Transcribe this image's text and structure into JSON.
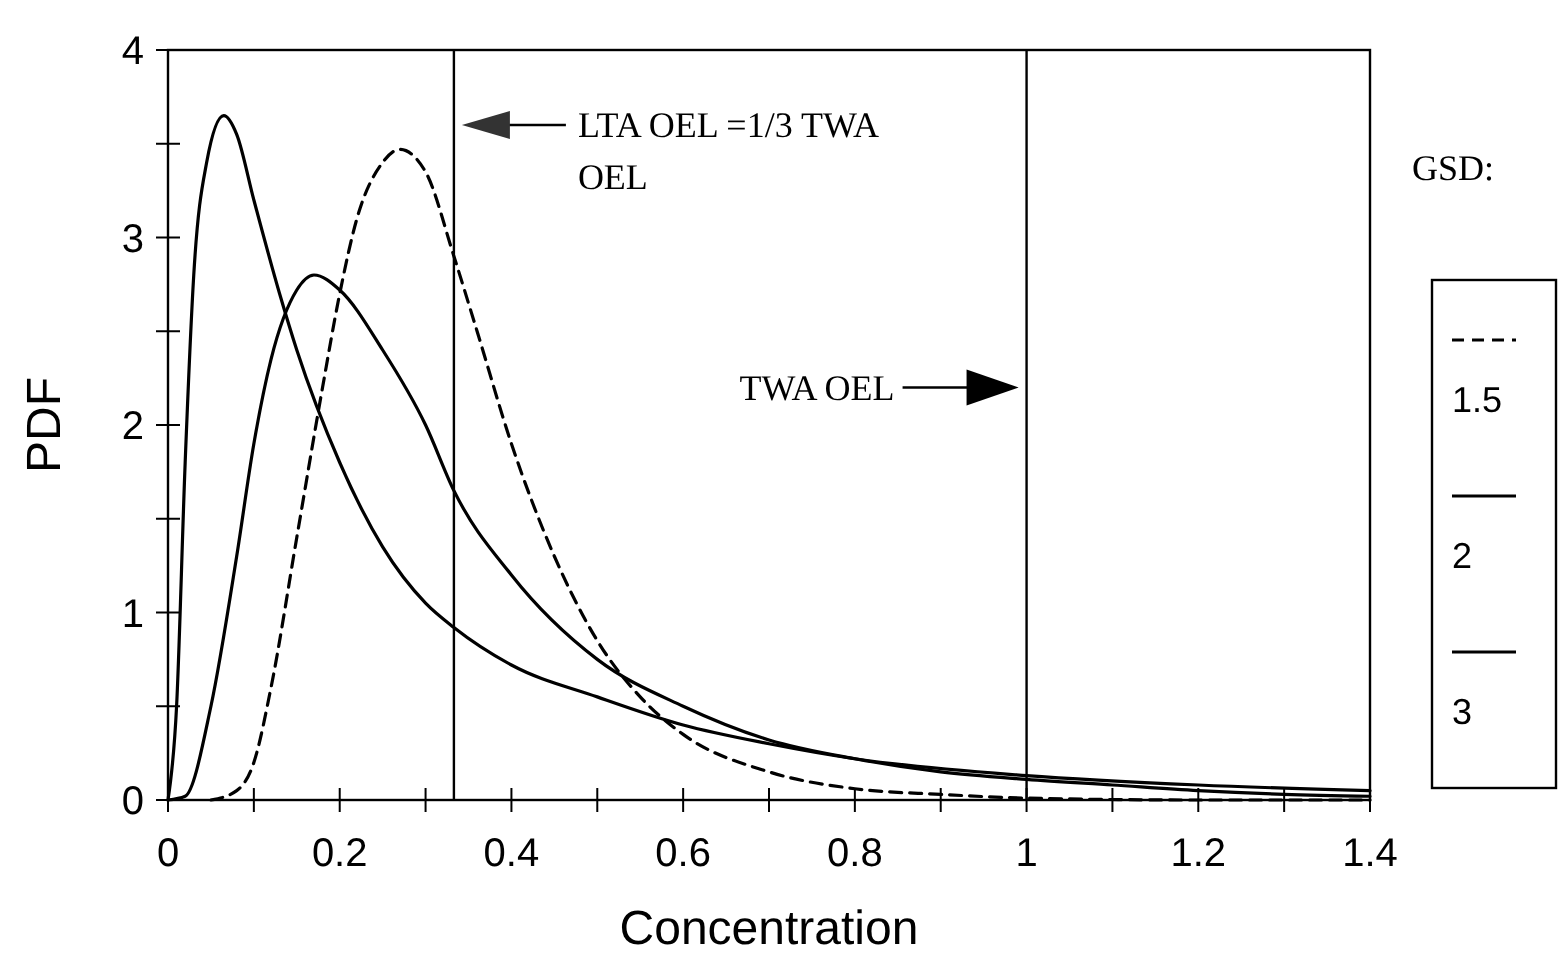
{
  "chart_data": {
    "type": "line",
    "xlabel": "Concentration",
    "ylabel": "PDF",
    "legend_title": "GSD:",
    "legend": "right",
    "marker": "none",
    "xlim": [
      0,
      1.4
    ],
    "ylim": [
      0,
      4
    ],
    "xticks": [
      0,
      {
        "value": 0.1,
        "label": null
      },
      0.2,
      {
        "value": 0.3,
        "label": null
      },
      0.4,
      {
        "value": 0.5,
        "label": null
      },
      0.6,
      {
        "value": 0.7,
        "label": null
      },
      0.8,
      {
        "value": 0.9,
        "label": null
      },
      1,
      {
        "value": 1.1,
        "label": null
      },
      1.2,
      {
        "value": 1.3,
        "label": null
      },
      1.4
    ],
    "yticks": [
      0,
      {
        "value": 0.5,
        "label": null
      },
      1,
      {
        "value": 1.5,
        "label": null
      },
      2,
      {
        "value": 2.5,
        "label": null
      },
      3,
      {
        "value": 3.5,
        "label": null
      },
      4
    ],
    "series": [
      {
        "name": "1.5",
        "color": "#000000",
        "line_style": "dashed",
        "x": [
          0.05,
          0.08,
          0.1,
          0.12,
          0.15,
          0.18,
          0.2,
          0.22,
          0.25,
          0.27,
          0.3,
          0.333,
          0.36,
          0.4,
          0.45,
          0.5,
          0.55,
          0.6,
          0.7,
          0.8,
          0.9,
          1.0,
          1.2,
          1.4
        ],
        "values": [
          0,
          0.05,
          0.2,
          0.6,
          1.4,
          2.2,
          2.7,
          3.1,
          3.4,
          3.47,
          3.35,
          2.9,
          2.5,
          1.9,
          1.3,
          0.85,
          0.55,
          0.35,
          0.15,
          0.06,
          0.03,
          0.01,
          0,
          0
        ]
      },
      {
        "name": "2",
        "color": "#000000",
        "line_style": "solid",
        "x": [
          0,
          0.02,
          0.05,
          0.08,
          0.1,
          0.12,
          0.15,
          0.17,
          0.2,
          0.25,
          0.3,
          0.333,
          0.4,
          0.5,
          0.6,
          0.7,
          0.8,
          0.9,
          1.0,
          1.1,
          1.2,
          1.3,
          1.4
        ],
        "values": [
          0,
          0.02,
          0.5,
          1.3,
          1.9,
          2.35,
          2.72,
          2.8,
          2.72,
          2.4,
          2.0,
          1.65,
          1.2,
          0.75,
          0.5,
          0.32,
          0.22,
          0.15,
          0.11,
          0.08,
          0.05,
          0.03,
          0.02
        ]
      },
      {
        "name": "3",
        "color": "#000000",
        "line_style": "solid",
        "x": [
          0,
          0.01,
          0.02,
          0.03,
          0.045,
          0.065,
          0.08,
          0.1,
          0.13,
          0.15,
          0.2,
          0.25,
          0.3,
          0.333,
          0.4,
          0.5,
          0.6,
          0.7,
          0.8,
          1.0,
          1.2,
          1.4
        ],
        "values": [
          0,
          0.5,
          1.8,
          2.8,
          3.4,
          3.65,
          3.55,
          3.2,
          2.7,
          2.4,
          1.8,
          1.35,
          1.05,
          0.92,
          0.72,
          0.55,
          0.4,
          0.3,
          0.22,
          0.13,
          0.08,
          0.05
        ]
      }
    ],
    "ref_lines": [
      {
        "axis": "x",
        "value": 0.333,
        "color": "#000000"
      },
      {
        "axis": "x",
        "value": 1,
        "color": "#000000"
      }
    ],
    "annotations": [
      "LTA OEL =1/3 TWA OEL",
      "TWA OEL"
    ]
  }
}
